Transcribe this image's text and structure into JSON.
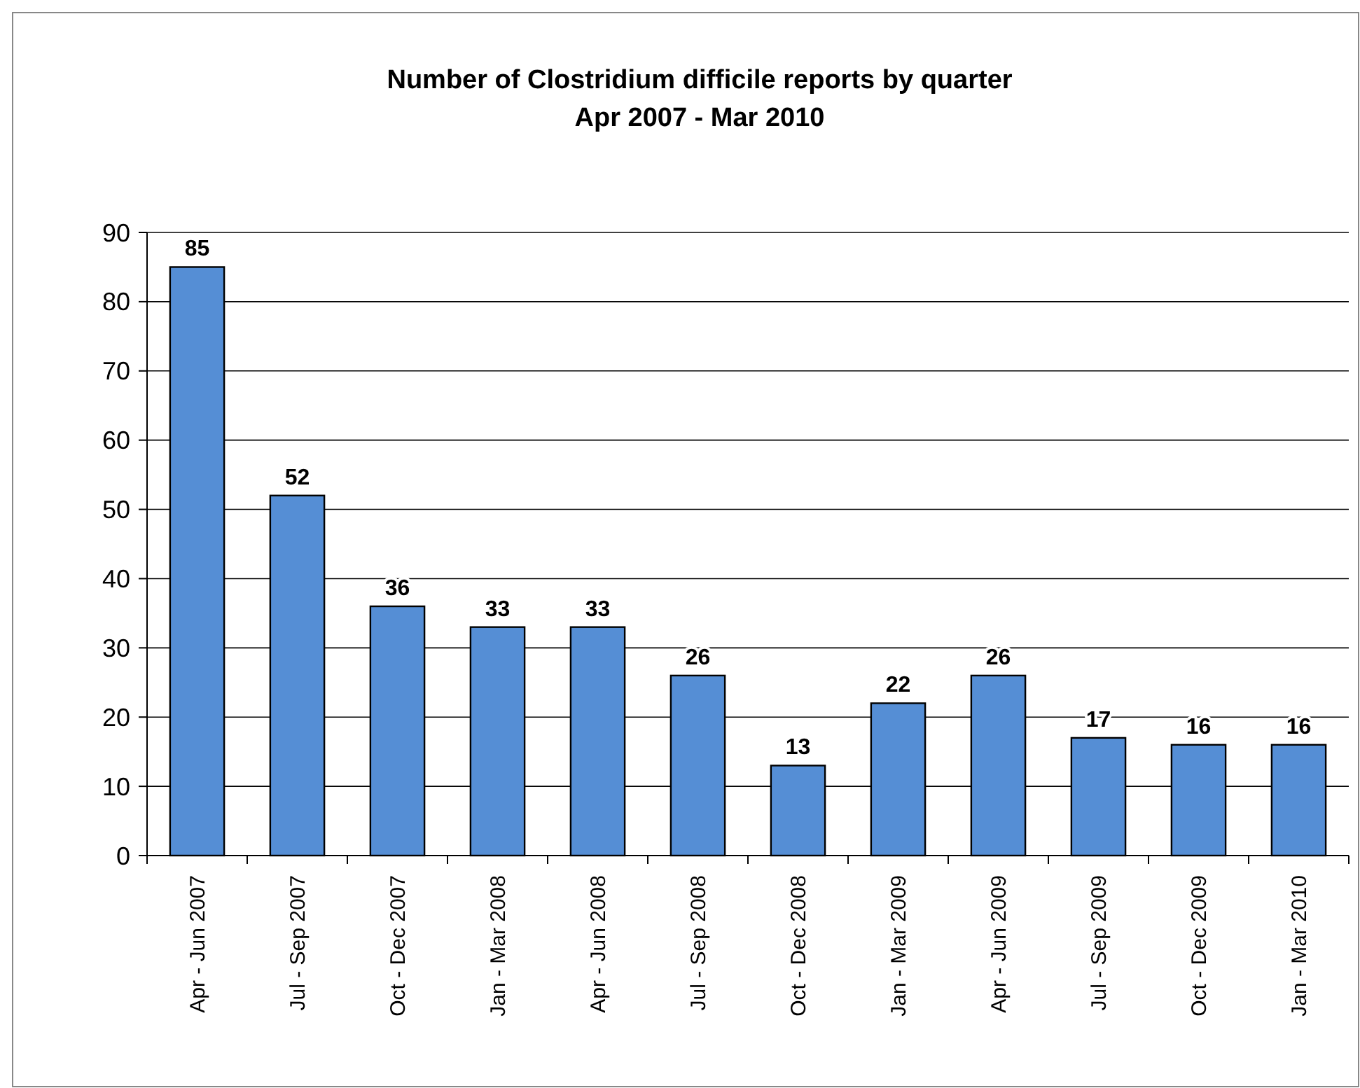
{
  "chart_data": {
    "type": "bar",
    "title": "Number of Clostridium difficile reports by quarter",
    "subtitle": "Apr 2007 - Mar 2010",
    "categories": [
      "Apr - Jun 2007",
      "Jul - Sep 2007",
      "Oct - Dec 2007",
      "Jan - Mar 2008",
      "Apr - Jun 2008",
      "Jul - Sep 2008",
      "Oct - Dec 2008",
      "Jan - Mar 2009",
      "Apr - Jun 2009",
      "Jul - Sep 2009",
      "Oct - Dec 2009",
      "Jan - Mar 2010"
    ],
    "values": [
      85,
      52,
      36,
      33,
      33,
      26,
      13,
      22,
      26,
      17,
      16,
      16
    ],
    "color": "#558ed5",
    "ylim": [
      0,
      90
    ],
    "yticks": [
      0,
      10,
      20,
      30,
      40,
      50,
      60,
      70,
      80,
      90
    ],
    "grid": "y",
    "data_labels": true
  }
}
